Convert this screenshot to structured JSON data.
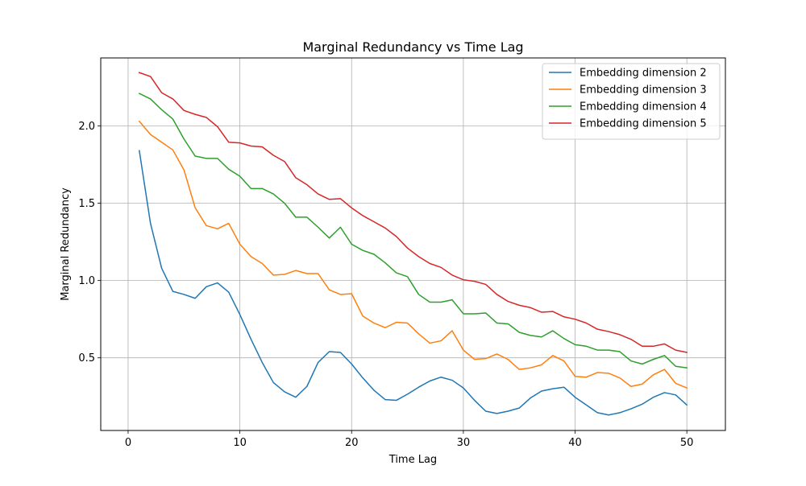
{
  "chart_data": {
    "type": "line",
    "title": "Marginal Redundancy vs Time Lag",
    "xlabel": "Time Lag",
    "ylabel": "Marginal Redundancy",
    "xlim": [
      -2.45,
      53.45
    ],
    "ylim": [
      0.03,
      2.44
    ],
    "xticks": [
      0,
      10,
      20,
      30,
      40,
      50
    ],
    "yticks": [
      0.5,
      1.0,
      1.5,
      2.0
    ],
    "xtick_labels": [
      "0",
      "10",
      "20",
      "30",
      "40",
      "50"
    ],
    "ytick_labels": [
      "0.5",
      "1.0",
      "1.5",
      "2.0"
    ],
    "grid": true,
    "legend_position": "top-right",
    "x": [
      1,
      2,
      3,
      4,
      5,
      6,
      7,
      8,
      9,
      10,
      11,
      12,
      13,
      14,
      15,
      16,
      17,
      18,
      19,
      20,
      21,
      22,
      23,
      24,
      25,
      26,
      27,
      28,
      29,
      30,
      31,
      32,
      33,
      34,
      35,
      36,
      37,
      38,
      39,
      40,
      41,
      42,
      43,
      44,
      45,
      46,
      47,
      48,
      49,
      50
    ],
    "series": [
      {
        "name": "Embedding dimension 2",
        "color": "#1f77b4",
        "values": [
          1.84,
          1.37,
          1.08,
          0.93,
          0.91,
          0.885,
          0.96,
          0.985,
          0.925,
          0.78,
          0.62,
          0.47,
          0.34,
          0.28,
          0.245,
          0.315,
          0.47,
          0.54,
          0.535,
          0.46,
          0.37,
          0.29,
          0.23,
          0.225,
          0.265,
          0.31,
          0.35,
          0.375,
          0.355,
          0.305,
          0.225,
          0.155,
          0.14,
          0.155,
          0.175,
          0.24,
          0.285,
          0.3,
          0.31,
          0.245,
          0.195,
          0.145,
          0.13,
          0.145,
          0.17,
          0.2,
          0.245,
          0.275,
          0.26,
          0.195
        ]
      },
      {
        "name": "Embedding dimension 3",
        "color": "#ff7f0e",
        "values": [
          2.03,
          1.945,
          1.895,
          1.845,
          1.715,
          1.47,
          1.355,
          1.335,
          1.37,
          1.235,
          1.155,
          1.11,
          1.035,
          1.04,
          1.065,
          1.045,
          1.045,
          0.94,
          0.91,
          0.915,
          0.77,
          0.725,
          0.695,
          0.73,
          0.725,
          0.655,
          0.595,
          0.61,
          0.675,
          0.55,
          0.49,
          0.495,
          0.525,
          0.49,
          0.425,
          0.435,
          0.455,
          0.515,
          0.48,
          0.38,
          0.375,
          0.405,
          0.4,
          0.37,
          0.315,
          0.33,
          0.39,
          0.425,
          0.335,
          0.305
        ]
      },
      {
        "name": "Embedding dimension 4",
        "color": "#2ca02c",
        "values": [
          2.21,
          2.175,
          2.105,
          2.045,
          1.915,
          1.805,
          1.79,
          1.79,
          1.72,
          1.675,
          1.595,
          1.595,
          1.56,
          1.5,
          1.41,
          1.41,
          1.345,
          1.275,
          1.345,
          1.235,
          1.195,
          1.17,
          1.115,
          1.05,
          1.025,
          0.91,
          0.86,
          0.86,
          0.875,
          0.785,
          0.785,
          0.79,
          0.725,
          0.72,
          0.665,
          0.645,
          0.635,
          0.675,
          0.625,
          0.585,
          0.575,
          0.55,
          0.55,
          0.54,
          0.48,
          0.46,
          0.49,
          0.515,
          0.445,
          0.435
        ]
      },
      {
        "name": "Embedding dimension 5",
        "color": "#d62728",
        "values": [
          2.345,
          2.32,
          2.215,
          2.175,
          2.1,
          2.075,
          2.055,
          1.995,
          1.895,
          1.89,
          1.87,
          1.865,
          1.81,
          1.77,
          1.665,
          1.62,
          1.56,
          1.525,
          1.53,
          1.47,
          1.42,
          1.38,
          1.34,
          1.285,
          1.21,
          1.155,
          1.11,
          1.085,
          1.035,
          1.005,
          0.995,
          0.975,
          0.91,
          0.865,
          0.84,
          0.825,
          0.795,
          0.8,
          0.765,
          0.75,
          0.725,
          0.685,
          0.67,
          0.65,
          0.62,
          0.575,
          0.575,
          0.59,
          0.55,
          0.535
        ]
      }
    ]
  }
}
